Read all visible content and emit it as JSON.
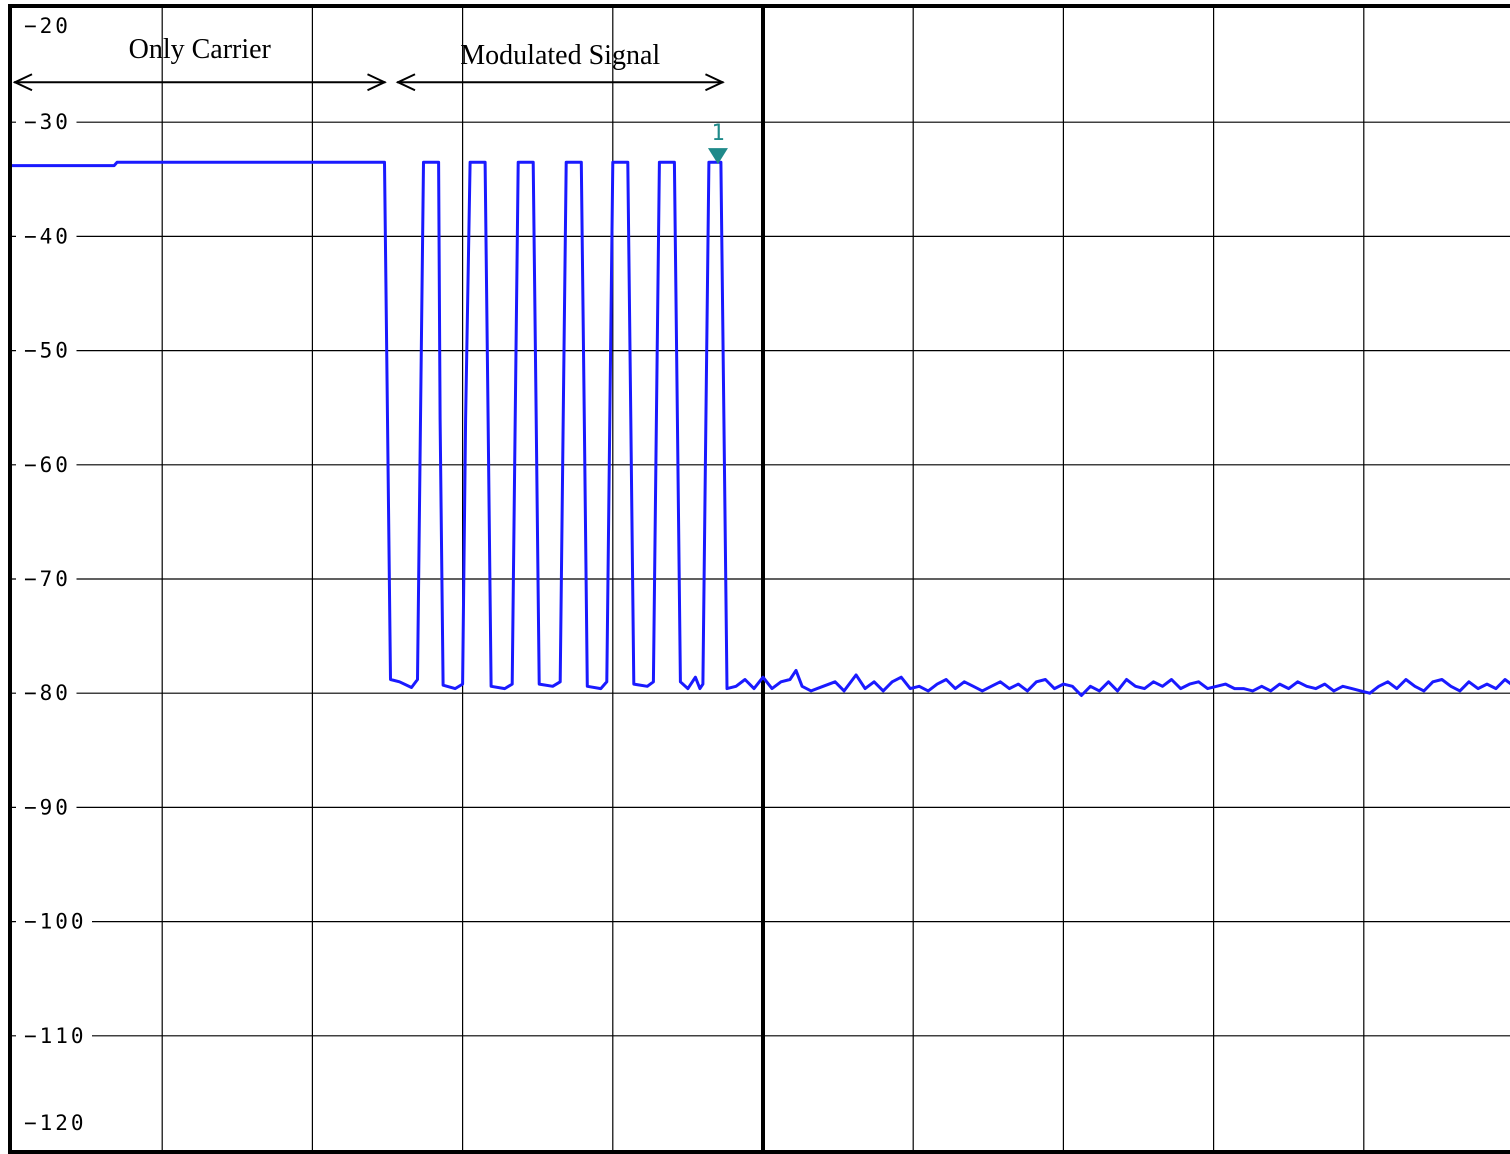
{
  "chart_data": {
    "type": "line",
    "title": "",
    "xlabel": "",
    "ylabel": "",
    "ylim": [
      -120,
      -20
    ],
    "xlim": [
      0,
      10
    ],
    "grid": true,
    "y_ticks": [
      "-20",
      "-30",
      "-40",
      "-50",
      "-60",
      "-70",
      "-80",
      "-90",
      "-100",
      "-110",
      "-120"
    ],
    "y_tick_values": [
      -20,
      -30,
      -40,
      -50,
      -60,
      -70,
      -80,
      -90,
      -100,
      -110,
      -120
    ],
    "x_gridlines": [
      0,
      1,
      2,
      3,
      4,
      5,
      6,
      7,
      8,
      9,
      10
    ],
    "center_divider_x": 5,
    "annotations": [
      {
        "text": "Only Carrier",
        "x_from": 0,
        "x_to": 2.5
      },
      {
        "text": "Modulated Signal",
        "x_from": 2.55,
        "x_to": 4.75
      }
    ],
    "marker": {
      "label": "1",
      "x": 4.7,
      "y": -33.5,
      "color": "#1f8a8a"
    },
    "series": [
      {
        "color": "#1a1aff",
        "points": [
          [
            0,
            -33.8
          ],
          [
            0.68,
            -33.8
          ],
          [
            0.7,
            -33.5
          ],
          [
            2.48,
            -33.5
          ],
          [
            2.5,
            -56
          ],
          [
            2.52,
            -78.8
          ],
          [
            2.58,
            -79
          ],
          [
            2.66,
            -79.5
          ],
          [
            2.7,
            -78.8
          ],
          [
            2.72,
            -56
          ],
          [
            2.74,
            -33.5
          ],
          [
            2.84,
            -33.5
          ],
          [
            2.85,
            -56
          ],
          [
            2.87,
            -79.3
          ],
          [
            2.95,
            -79.6
          ],
          [
            3.0,
            -79.2
          ],
          [
            3.02,
            -56
          ],
          [
            3.05,
            -33.5
          ],
          [
            3.15,
            -33.5
          ],
          [
            3.17,
            -56
          ],
          [
            3.19,
            -79.4
          ],
          [
            3.28,
            -79.6
          ],
          [
            3.33,
            -79.2
          ],
          [
            3.35,
            -56
          ],
          [
            3.37,
            -33.5
          ],
          [
            3.47,
            -33.5
          ],
          [
            3.49,
            -56
          ],
          [
            3.51,
            -79.2
          ],
          [
            3.6,
            -79.4
          ],
          [
            3.65,
            -79.0
          ],
          [
            3.67,
            -56
          ],
          [
            3.69,
            -33.5
          ],
          [
            3.79,
            -33.5
          ],
          [
            3.81,
            -56
          ],
          [
            3.83,
            -79.4
          ],
          [
            3.92,
            -79.6
          ],
          [
            3.96,
            -79.0
          ],
          [
            3.98,
            -56
          ],
          [
            4.0,
            -33.5
          ],
          [
            4.1,
            -33.5
          ],
          [
            4.12,
            -56
          ],
          [
            4.14,
            -79.2
          ],
          [
            4.23,
            -79.4
          ],
          [
            4.27,
            -79.0
          ],
          [
            4.29,
            -56
          ],
          [
            4.31,
            -33.5
          ],
          [
            4.41,
            -33.5
          ],
          [
            4.43,
            -56
          ],
          [
            4.45,
            -79.0
          ],
          [
            4.5,
            -79.6
          ],
          [
            4.55,
            -78.6
          ],
          [
            4.58,
            -79.6
          ],
          [
            4.6,
            -79.2
          ],
          [
            4.62,
            -56
          ],
          [
            4.64,
            -33.5
          ],
          [
            4.72,
            -33.5
          ],
          [
            4.74,
            -56
          ],
          [
            4.76,
            -79.6
          ],
          [
            4.82,
            -79.4
          ],
          [
            4.88,
            -78.8
          ],
          [
            4.94,
            -79.6
          ],
          [
            5.0,
            -78.6
          ],
          [
            5.06,
            -79.6
          ],
          [
            5.12,
            -79.0
          ],
          [
            5.18,
            -78.8
          ],
          [
            5.22,
            -78.0
          ],
          [
            5.26,
            -79.4
          ],
          [
            5.32,
            -79.8
          ],
          [
            5.4,
            -79.4
          ],
          [
            5.48,
            -79.0
          ],
          [
            5.54,
            -79.8
          ],
          [
            5.62,
            -78.4
          ],
          [
            5.68,
            -79.6
          ],
          [
            5.74,
            -79.0
          ],
          [
            5.8,
            -79.8
          ],
          [
            5.86,
            -79.0
          ],
          [
            5.92,
            -78.6
          ],
          [
            5.98,
            -79.6
          ],
          [
            6.04,
            -79.4
          ],
          [
            6.1,
            -79.8
          ],
          [
            6.16,
            -79.2
          ],
          [
            6.22,
            -78.8
          ],
          [
            6.28,
            -79.6
          ],
          [
            6.34,
            -79.0
          ],
          [
            6.4,
            -79.4
          ],
          [
            6.46,
            -79.8
          ],
          [
            6.52,
            -79.4
          ],
          [
            6.58,
            -79.0
          ],
          [
            6.64,
            -79.6
          ],
          [
            6.7,
            -79.2
          ],
          [
            6.76,
            -79.8
          ],
          [
            6.82,
            -79.0
          ],
          [
            6.88,
            -78.8
          ],
          [
            6.94,
            -79.6
          ],
          [
            7.0,
            -79.2
          ],
          [
            7.06,
            -79.4
          ],
          [
            7.12,
            -80.2
          ],
          [
            7.18,
            -79.4
          ],
          [
            7.24,
            -79.8
          ],
          [
            7.3,
            -79.0
          ],
          [
            7.36,
            -79.8
          ],
          [
            7.42,
            -78.8
          ],
          [
            7.48,
            -79.4
          ],
          [
            7.54,
            -79.6
          ],
          [
            7.6,
            -79.0
          ],
          [
            7.66,
            -79.4
          ],
          [
            7.72,
            -78.8
          ],
          [
            7.78,
            -79.6
          ],
          [
            7.84,
            -79.2
          ],
          [
            7.9,
            -79.0
          ],
          [
            7.96,
            -79.6
          ],
          [
            8.02,
            -79.4
          ],
          [
            8.08,
            -79.2
          ],
          [
            8.14,
            -79.6
          ],
          [
            8.2,
            -79.6
          ],
          [
            8.26,
            -79.8
          ],
          [
            8.32,
            -79.4
          ],
          [
            8.38,
            -79.8
          ],
          [
            8.44,
            -79.2
          ],
          [
            8.5,
            -79.6
          ],
          [
            8.56,
            -79.0
          ],
          [
            8.62,
            -79.4
          ],
          [
            8.68,
            -79.6
          ],
          [
            8.74,
            -79.2
          ],
          [
            8.8,
            -79.8
          ],
          [
            8.86,
            -79.4
          ],
          [
            8.92,
            -79.6
          ],
          [
            8.98,
            -79.8
          ],
          [
            9.04,
            -80.0
          ],
          [
            9.1,
            -79.4
          ],
          [
            9.16,
            -79.0
          ],
          [
            9.22,
            -79.6
          ],
          [
            9.28,
            -78.8
          ],
          [
            9.34,
            -79.4
          ],
          [
            9.4,
            -79.8
          ],
          [
            9.46,
            -79.0
          ],
          [
            9.52,
            -78.8
          ],
          [
            9.58,
            -79.4
          ],
          [
            9.64,
            -79.8
          ],
          [
            9.7,
            -79.0
          ],
          [
            9.76,
            -79.6
          ],
          [
            9.82,
            -79.2
          ],
          [
            9.88,
            -79.6
          ],
          [
            9.94,
            -78.8
          ],
          [
            10.0,
            -79.4
          ]
        ]
      }
    ]
  }
}
